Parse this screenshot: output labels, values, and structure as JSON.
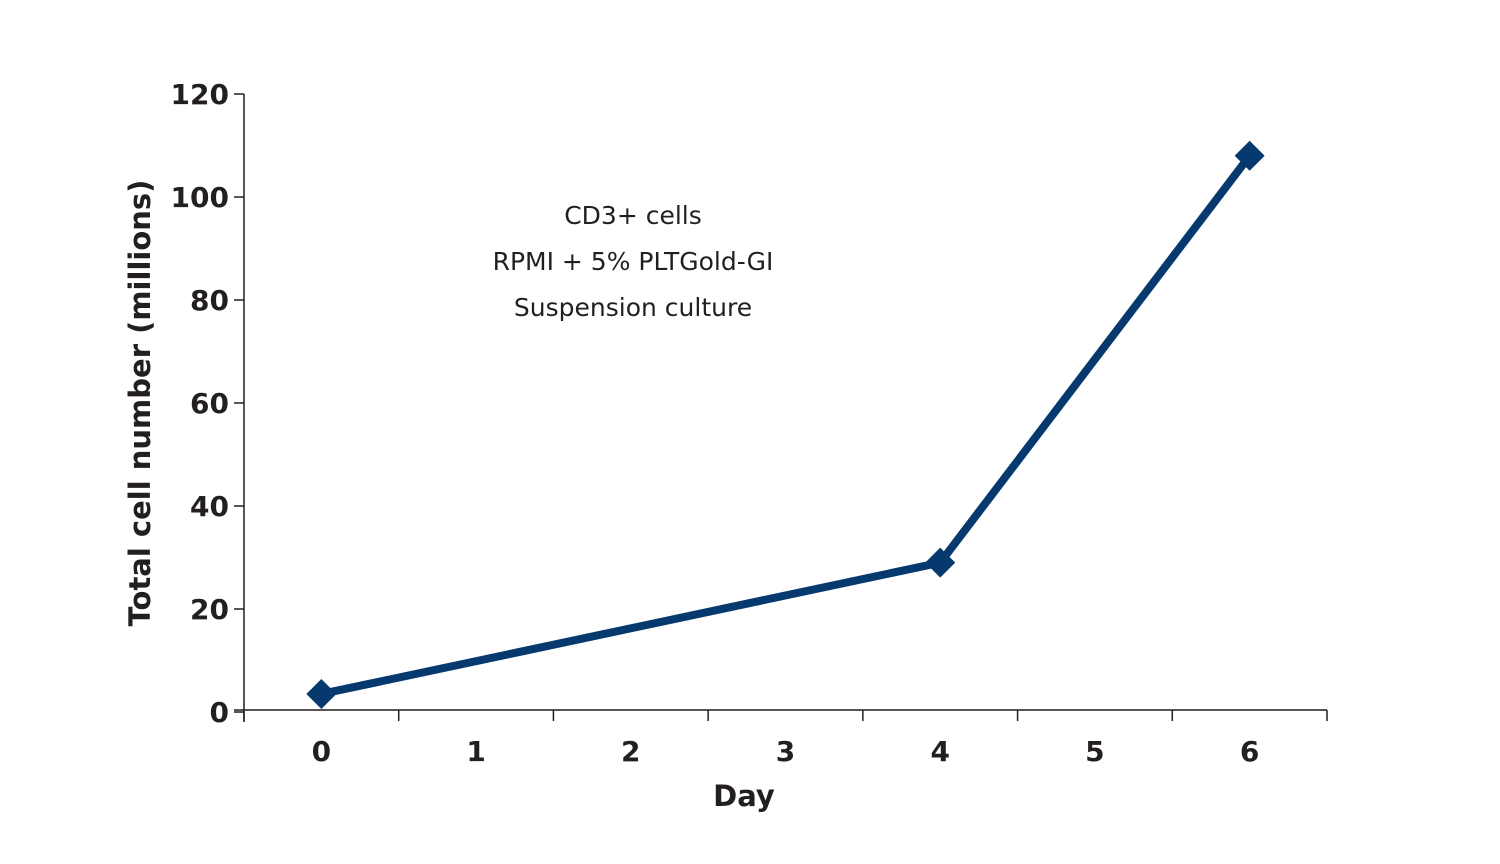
{
  "chart_data": {
    "type": "line",
    "title": "",
    "xlabel": "Day",
    "ylabel": "Total cell number (millions)",
    "x_categories": [
      "0",
      "1",
      "2",
      "3",
      "4",
      "5",
      "6"
    ],
    "yticks": [
      "0",
      "20",
      "40",
      "60",
      "80",
      "100",
      "120"
    ],
    "ylim": [
      0,
      120
    ],
    "grid": false,
    "legend": null,
    "annotations": [
      "CD3+ cells",
      "RPMI + 5% PLTGold-GI",
      "Suspension culture"
    ],
    "series": [
      {
        "name": "CD3+ cells",
        "color": "#063a6e",
        "marker": "diamond",
        "x": [
          0,
          4,
          6
        ],
        "values": [
          3.5,
          29,
          108
        ]
      }
    ]
  }
}
